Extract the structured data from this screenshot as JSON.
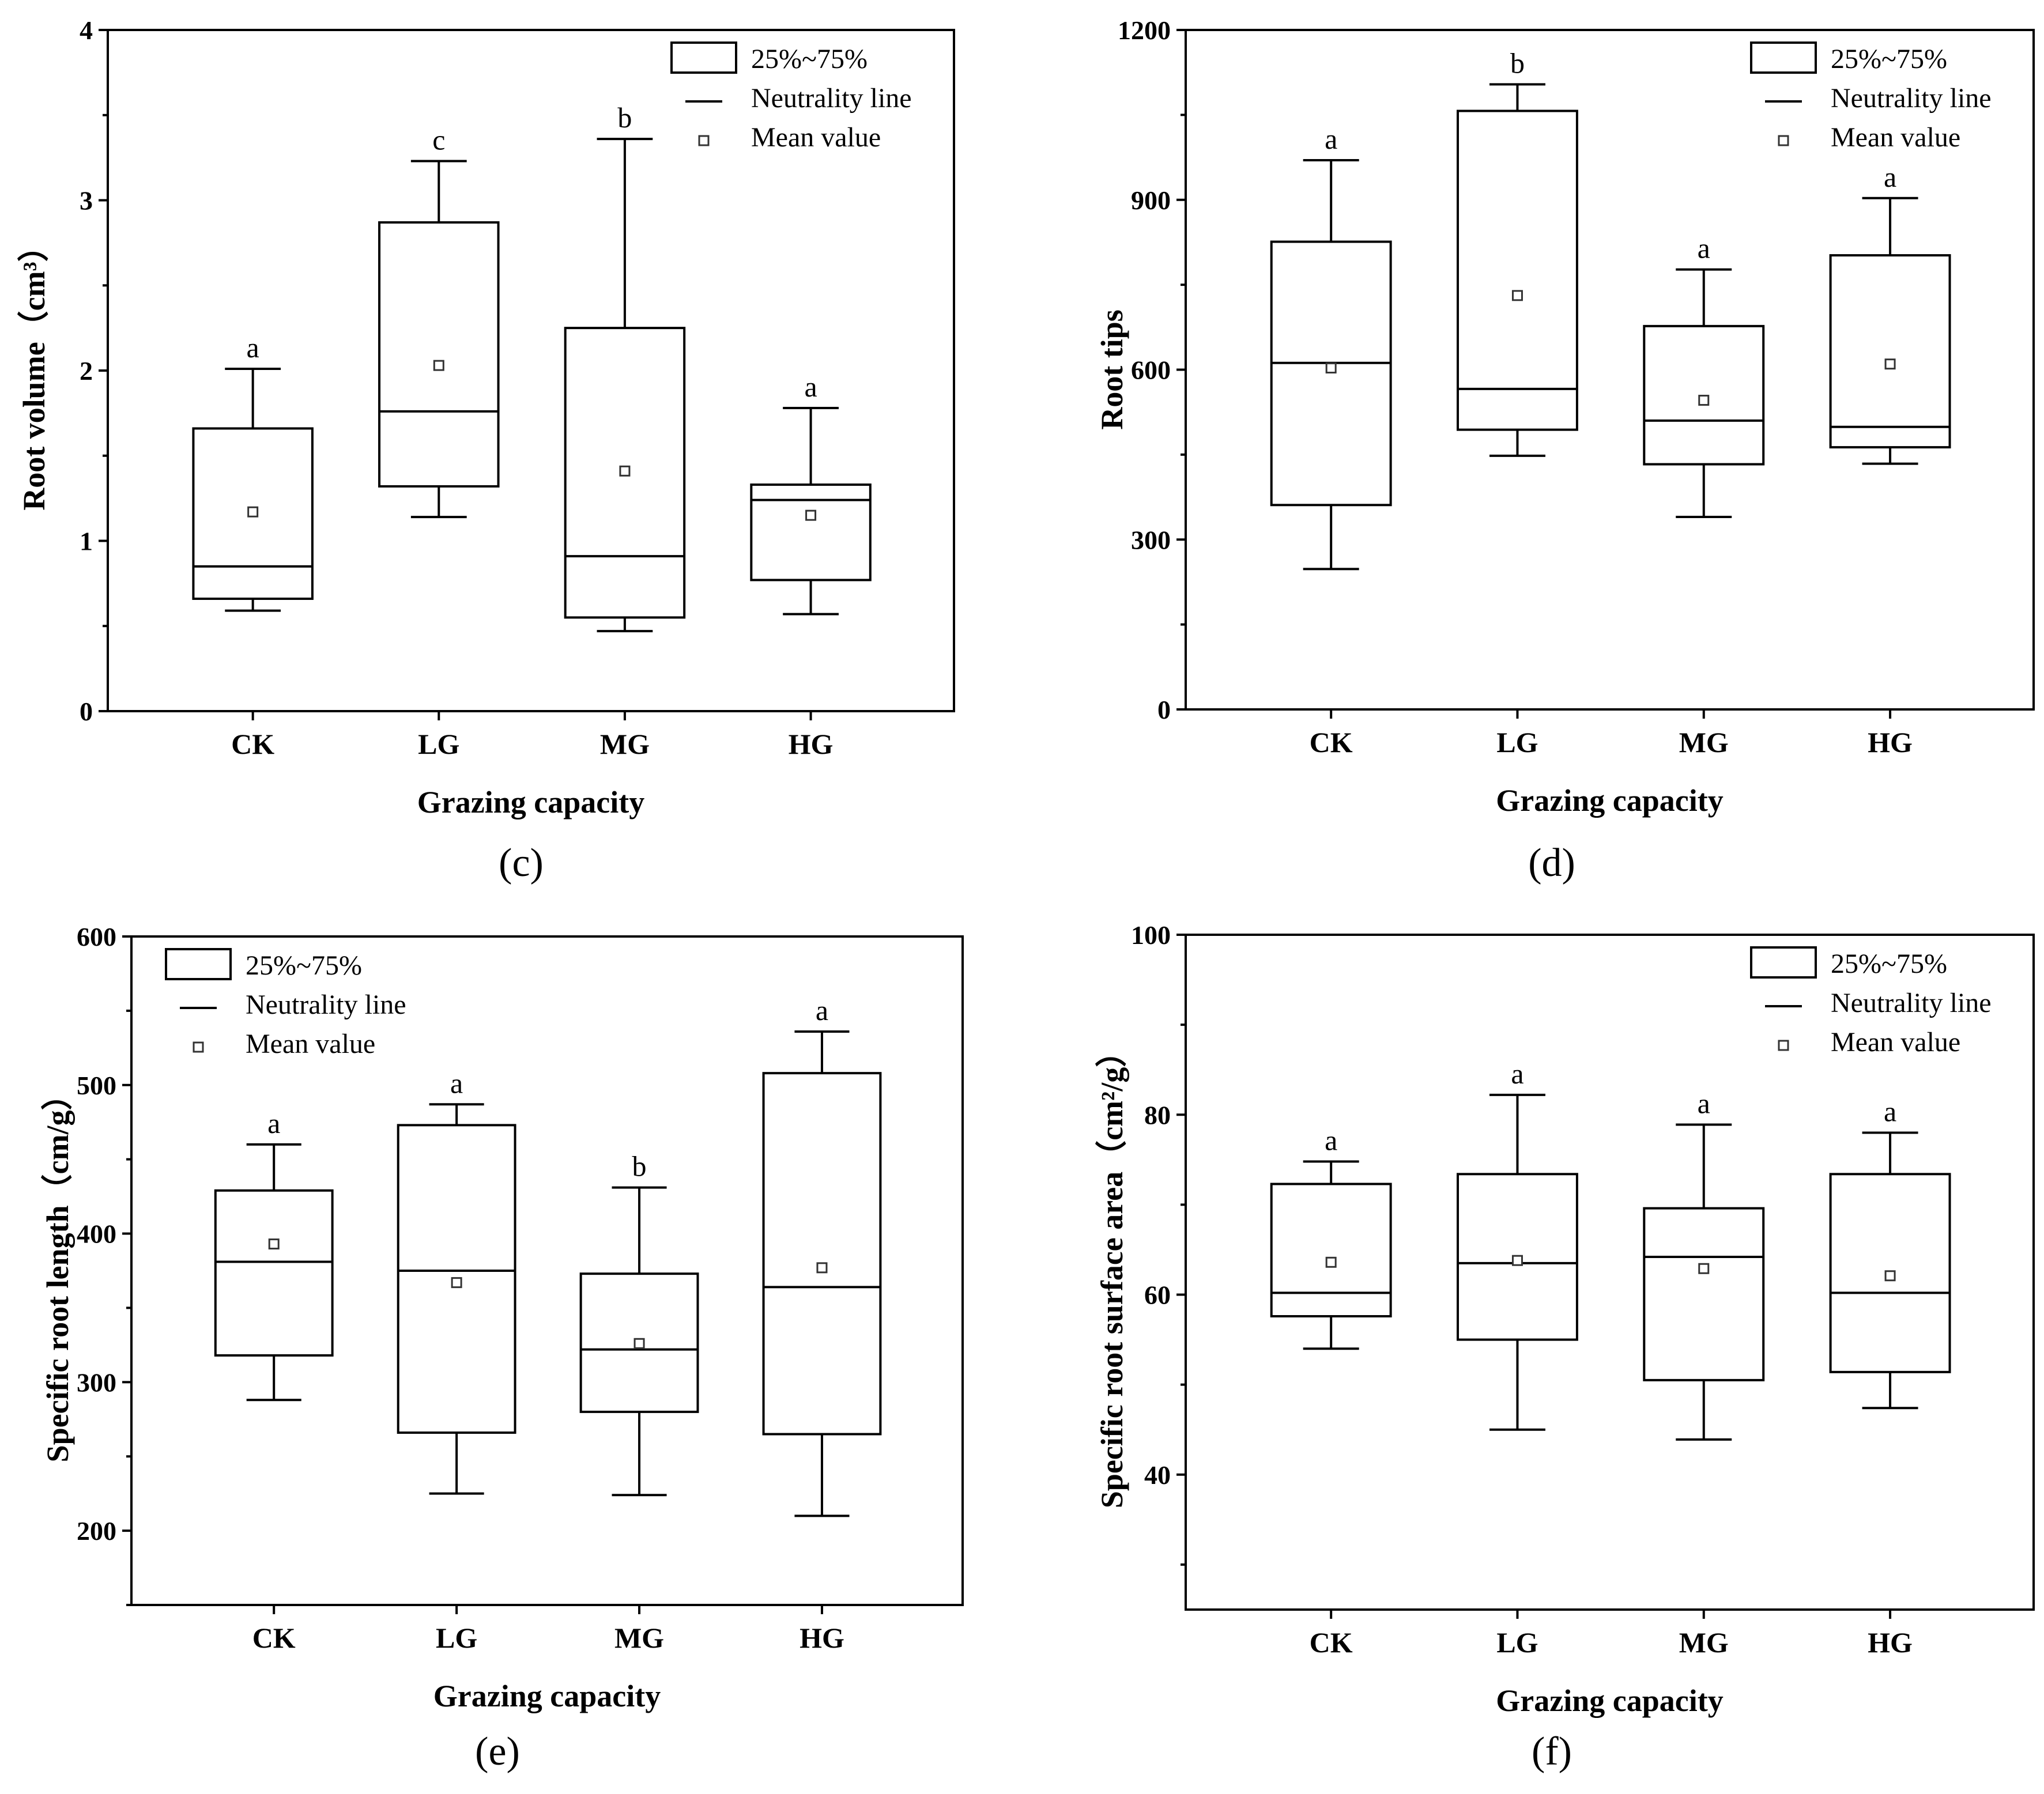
{
  "chart_data": [
    {
      "panel": "c",
      "type": "box",
      "xlabel": "Grazing capacity",
      "ylabel": "Root volume（cm³）",
      "ylim": [
        0,
        4
      ],
      "yticks": [
        0,
        1,
        2,
        3,
        4
      ],
      "categories": [
        "CK",
        "LG",
        "MG",
        "HG"
      ],
      "boxes": [
        {
          "min": 0.59,
          "q1": 0.66,
          "median": 0.85,
          "q3": 1.66,
          "max": 2.01,
          "mean": 1.17,
          "letter": "a"
        },
        {
          "min": 1.14,
          "q1": 1.32,
          "median": 1.76,
          "q3": 2.87,
          "max": 3.23,
          "mean": 2.03,
          "letter": "c"
        },
        {
          "min": 0.47,
          "q1": 0.55,
          "median": 0.91,
          "q3": 2.25,
          "max": 3.36,
          "mean": 1.41,
          "letter": "b"
        },
        {
          "min": 0.57,
          "q1": 0.77,
          "median": 1.24,
          "q3": 1.33,
          "max": 1.78,
          "mean": 1.15,
          "letter": "a"
        }
      ],
      "legend": {
        "position": "top-right",
        "items": [
          "25%~75%",
          "Neutrality line",
          "Mean value"
        ]
      }
    },
    {
      "panel": "d",
      "type": "box",
      "xlabel": "Grazing capacity",
      "ylabel": "Root tips",
      "ylim": [
        0,
        1200
      ],
      "yticks": [
        0,
        300,
        600,
        900,
        1200
      ],
      "categories": [
        "CK",
        "LG",
        "MG",
        "HG"
      ],
      "boxes": [
        {
          "min": 248,
          "q1": 361,
          "median": 612,
          "q3": 826,
          "max": 970,
          "mean": 603,
          "letter": "a"
        },
        {
          "min": 448,
          "q1": 494,
          "median": 566,
          "q3": 1057,
          "max": 1104,
          "mean": 731,
          "letter": "b"
        },
        {
          "min": 340,
          "q1": 433,
          "median": 510,
          "q3": 677,
          "max": 777,
          "mean": 546,
          "letter": "a"
        },
        {
          "min": 434,
          "q1": 463,
          "median": 499,
          "q3": 802,
          "max": 903,
          "mean": 610,
          "letter": "a"
        }
      ],
      "legend": {
        "position": "top-right",
        "items": [
          "25%~75%",
          "Neutrality line",
          "Mean value"
        ]
      }
    },
    {
      "panel": "e",
      "type": "box",
      "xlabel": "Grazing capacity",
      "ylabel": "Specific root length（cm/g）",
      "ylim": [
        150,
        600
      ],
      "yticks": [
        200,
        300,
        400,
        500,
        600
      ],
      "categories": [
        "CK",
        "LG",
        "MG",
        "HG"
      ],
      "boxes": [
        {
          "min": 288,
          "q1": 318,
          "median": 381,
          "q3": 429,
          "max": 460,
          "mean": 393,
          "letter": "a"
        },
        {
          "min": 225,
          "q1": 266,
          "median": 375,
          "q3": 473,
          "max": 487,
          "mean": 367,
          "letter": "a"
        },
        {
          "min": 224,
          "q1": 280,
          "median": 322,
          "q3": 373,
          "max": 431,
          "mean": 326,
          "letter": "b"
        },
        {
          "min": 210,
          "q1": 265,
          "median": 364,
          "q3": 508,
          "max": 536,
          "mean": 377,
          "letter": "a"
        }
      ],
      "legend": {
        "position": "top-left",
        "items": [
          "25%~75%",
          "Neutrality line",
          "Mean value"
        ]
      }
    },
    {
      "panel": "f",
      "type": "box",
      "xlabel": "Grazing capacity",
      "ylabel": "Specific root surface area（cm²/g）",
      "ylim": [
        25,
        100
      ],
      "yticks": [
        40,
        60,
        80,
        100
      ],
      "categories": [
        "CK",
        "LG",
        "MG",
        "HG"
      ],
      "boxes": [
        {
          "min": 54.0,
          "q1": 57.6,
          "median": 60.2,
          "q3": 72.3,
          "max": 74.8,
          "mean": 63.6,
          "letter": "a"
        },
        {
          "min": 45.0,
          "q1": 55.0,
          "median": 63.5,
          "q3": 73.4,
          "max": 82.2,
          "mean": 63.8,
          "letter": "a"
        },
        {
          "min": 43.9,
          "q1": 50.5,
          "median": 64.2,
          "q3": 69.6,
          "max": 78.9,
          "mean": 62.9,
          "letter": "a"
        },
        {
          "min": 47.4,
          "q1": 51.4,
          "median": 60.2,
          "q3": 73.4,
          "max": 78.0,
          "mean": 62.1,
          "letter": "a"
        }
      ],
      "legend": {
        "position": "top-right",
        "items": [
          "25%~75%",
          "Neutrality line",
          "Mean value"
        ]
      }
    }
  ],
  "captions": [
    "(c)",
    "(d)",
    "(e)",
    "(f)"
  ]
}
